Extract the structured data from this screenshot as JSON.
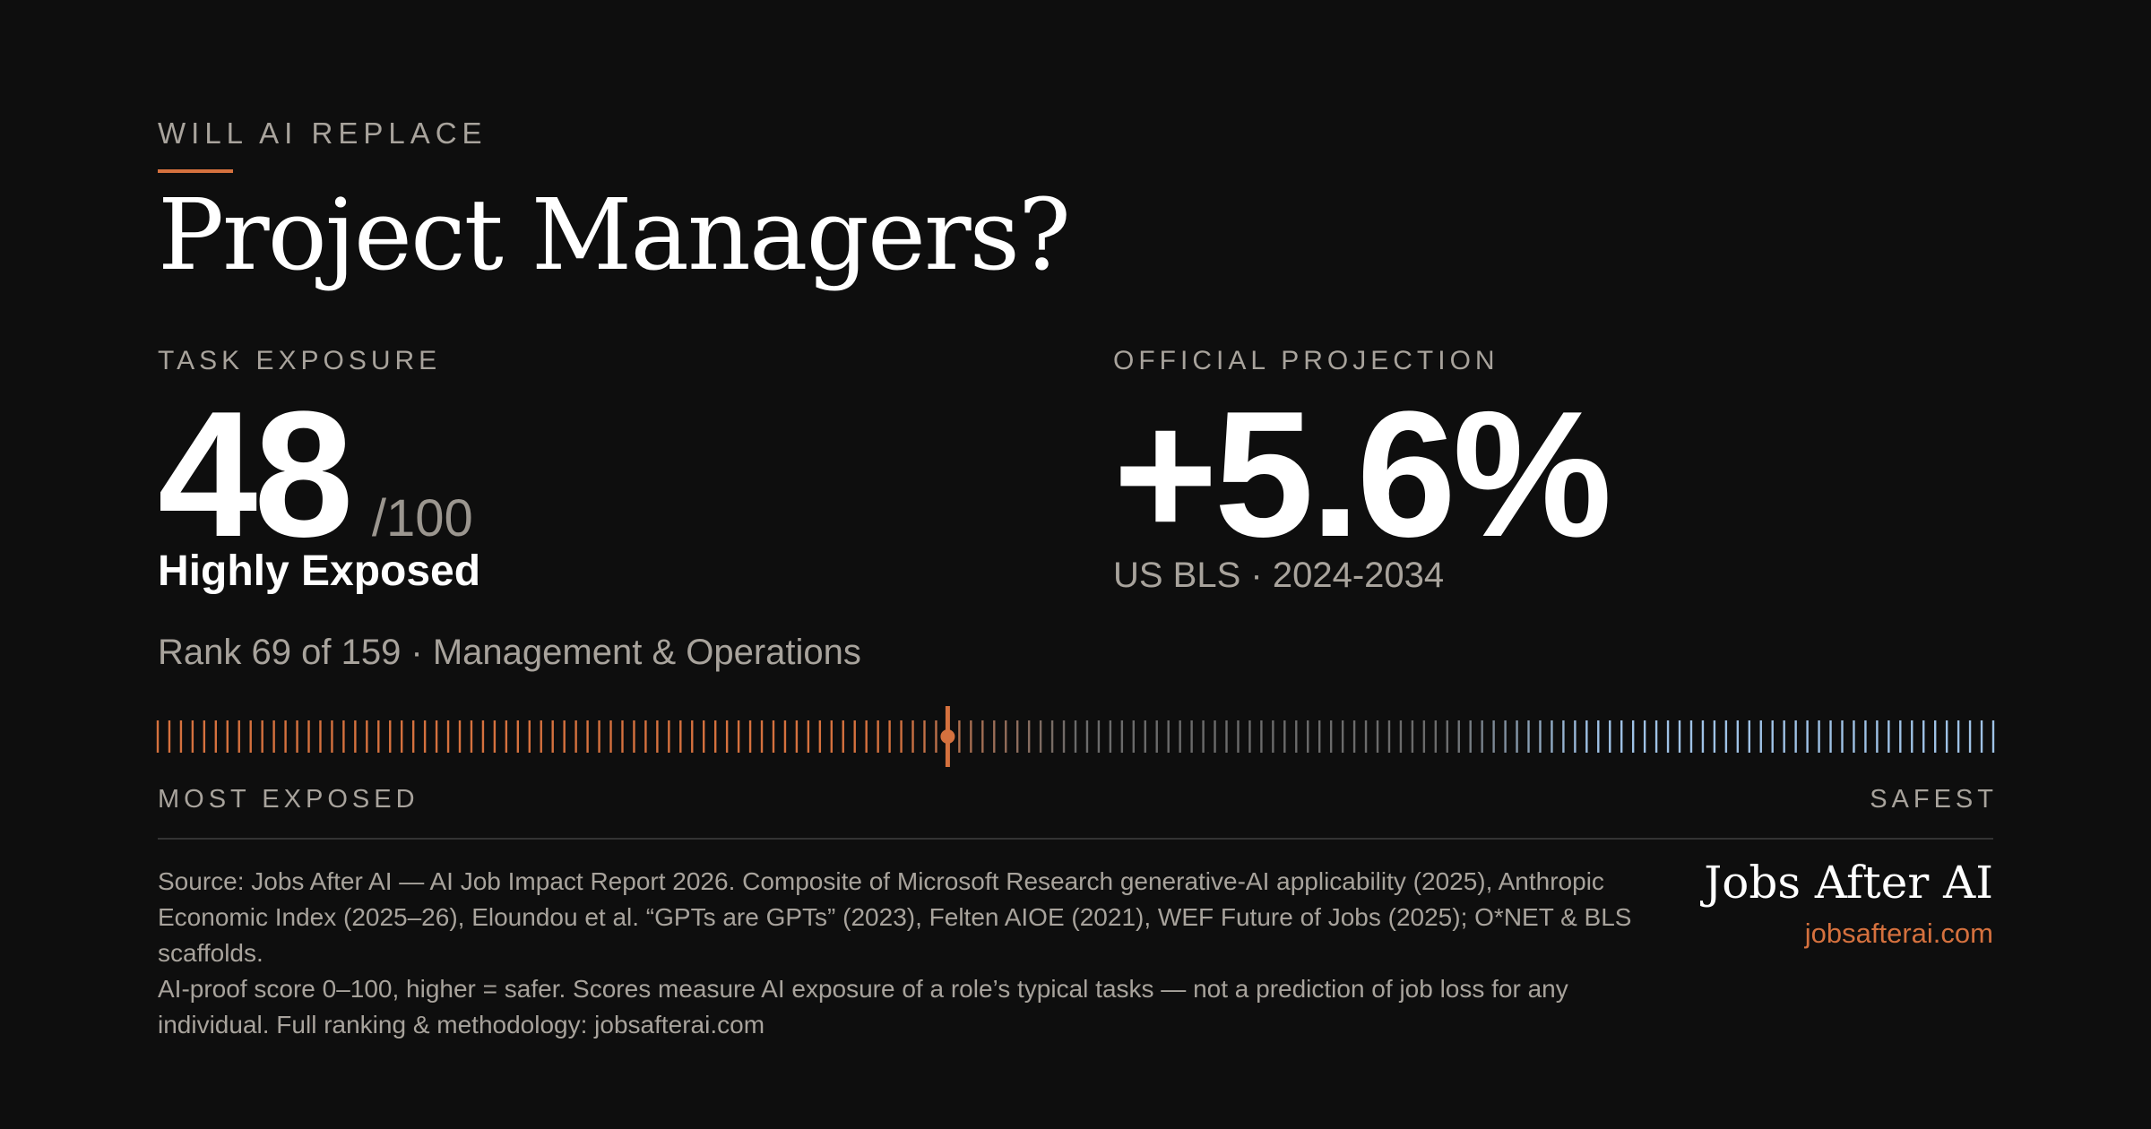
{
  "header": {
    "eyebrow": "WILL AI REPLACE",
    "title": "Project Managers?"
  },
  "exposure": {
    "label": "TASK EXPOSURE",
    "score": "48",
    "out_of": "/100",
    "tier": "Highly Exposed",
    "rank_line": "Rank 69 of 159 · Management & Operations"
  },
  "projection": {
    "label": "OFFICIAL PROJECTION",
    "value": "+5.6%",
    "source_line": "US BLS · 2024-2034"
  },
  "meter": {
    "total": 159,
    "rank": 69,
    "left_label": "MOST EXPOSED",
    "right_label": "SAFEST",
    "colors": {
      "exposed": "#d5713e",
      "neutral": "#6b6b6b",
      "safe": "#9fc2e6",
      "marker": "#d5713e"
    }
  },
  "footer": {
    "source_paragraph": "Source: Jobs After AI — AI Job Impact Report 2026. Composite of Microsoft Research generative-AI applicability (2025), Anthropic Economic Index (2025–26), Eloundou et al. “GPTs are GPTs” (2023), Felten AIOE (2021), WEF Future of Jobs (2025); O*NET & BLS scaffolds.",
    "method_paragraph": "AI-proof score 0–100, higher = safer. Scores measure AI exposure of a role’s typical tasks — not a prediction of job loss for any individual. Full ranking & methodology: jobsafterai.com",
    "brand_name": "Jobs After AI",
    "brand_url": "jobsafterai.com"
  }
}
